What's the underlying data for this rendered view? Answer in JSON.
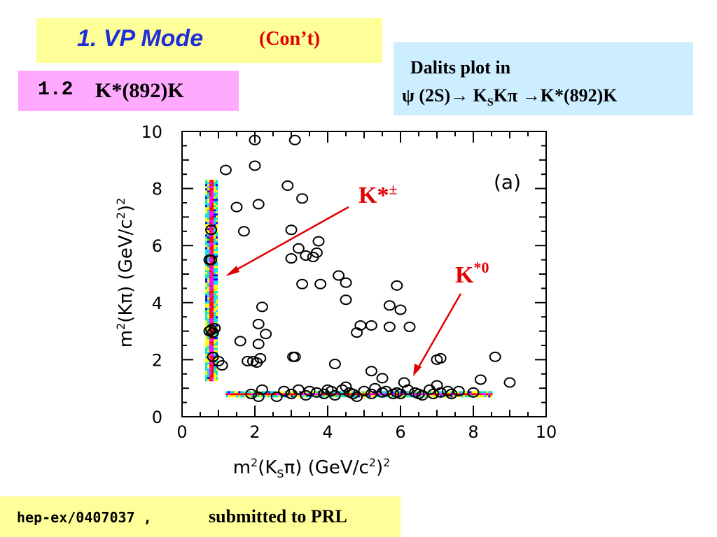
{
  "title": {
    "main": "1. VP Mode",
    "sub": "(Con’t)"
  },
  "section": {
    "number": "1.2",
    "text": "K*(892)K"
  },
  "info": {
    "line1": "Dalits plot in",
    "line2": "ψ (2S)→ K",
    "line2_sub": "S",
    "line2_rest": "Kπ →K*(892)K"
  },
  "footer": {
    "id": "hep-ex/0407037",
    "sep": " ,",
    "text": "submitted to PRL"
  },
  "annotations": {
    "kstar_pm": {
      "text": "K*",
      "sup": "±"
    },
    "kstar_0": {
      "text": "K",
      "sup": "*0"
    },
    "panel": "(a)"
  },
  "colors": {
    "title_blue": "#1f2fd6",
    "title_red": "#e00000",
    "arrow": "#e00000",
    "band_colors": [
      "#ffff00",
      "#00e0e0",
      "#ff00ff",
      "#ff0000",
      "#00ff66",
      "#0000ff"
    ]
  },
  "chart_data": {
    "type": "scatter",
    "title": "",
    "xlabel": "m²(Kₛπ) (GeV/c²)²",
    "xlabel_parts": [
      "m",
      "2",
      "(K",
      "S",
      "π) (GeV/c",
      "2",
      ")",
      "2"
    ],
    "ylabel_parts": [
      "m",
      "2",
      "(Kπ) (GeV/c",
      "2",
      ")",
      "2"
    ],
    "xlim": [
      0,
      10
    ],
    "ylim": [
      0,
      10
    ],
    "xticks": [
      "0",
      "2",
      "4",
      "6",
      "8",
      "10"
    ],
    "yticks": [
      "0",
      "2",
      "4",
      "6",
      "8",
      "10"
    ],
    "grid": false,
    "series": [
      {
        "marker": "open-circle",
        "points": [
          [
            2.0,
            9.7
          ],
          [
            3.1,
            9.7
          ],
          [
            1.2,
            8.65
          ],
          [
            2.0,
            8.8
          ],
          [
            2.9,
            8.1
          ],
          [
            3.3,
            7.65
          ],
          [
            1.5,
            7.35
          ],
          [
            2.1,
            7.45
          ],
          [
            0.8,
            6.55
          ],
          [
            1.7,
            6.5
          ],
          [
            3.0,
            6.55
          ],
          [
            3.0,
            5.55
          ],
          [
            3.2,
            5.9
          ],
          [
            3.4,
            5.65
          ],
          [
            3.6,
            5.6
          ],
          [
            3.7,
            5.75
          ],
          [
            3.75,
            6.15
          ],
          [
            0.75,
            5.5
          ],
          [
            0.8,
            5.5
          ],
          [
            3.3,
            4.65
          ],
          [
            3.8,
            4.65
          ],
          [
            4.3,
            4.95
          ],
          [
            4.5,
            4.7
          ],
          [
            5.9,
            4.6
          ],
          [
            4.5,
            4.1
          ],
          [
            5.7,
            3.9
          ],
          [
            6.0,
            3.75
          ],
          [
            2.2,
            3.85
          ],
          [
            2.1,
            3.25
          ],
          [
            2.3,
            2.9
          ],
          [
            2.1,
            2.55
          ],
          [
            1.6,
            2.65
          ],
          [
            3.1,
            2.1
          ],
          [
            3.05,
            2.1
          ],
          [
            4.2,
            1.85
          ],
          [
            4.9,
            3.2
          ],
          [
            5.2,
            3.2
          ],
          [
            5.7,
            3.15
          ],
          [
            6.25,
            3.15
          ],
          [
            4.8,
            2.95
          ],
          [
            0.75,
            3.0
          ],
          [
            0.8,
            3.05
          ],
          [
            0.85,
            2.95
          ],
          [
            0.9,
            3.1
          ],
          [
            0.85,
            2.1
          ],
          [
            1.0,
            1.95
          ],
          [
            1.1,
            1.8
          ],
          [
            1.8,
            1.95
          ],
          [
            1.95,
            1.95
          ],
          [
            2.05,
            1.9
          ],
          [
            2.15,
            2.05
          ],
          [
            5.2,
            1.6
          ],
          [
            5.5,
            1.35
          ],
          [
            7.0,
            2.0
          ],
          [
            7.1,
            2.05
          ],
          [
            8.6,
            2.1
          ],
          [
            9.0,
            1.2
          ],
          [
            8.2,
            1.3
          ],
          [
            6.1,
            1.2
          ],
          [
            7.4,
            0.8
          ],
          [
            7.0,
            1.1
          ],
          [
            1.9,
            0.8
          ],
          [
            2.1,
            0.7
          ],
          [
            2.2,
            0.95
          ],
          [
            2.6,
            0.7
          ],
          [
            2.8,
            0.9
          ],
          [
            3.0,
            0.8
          ],
          [
            3.2,
            0.95
          ],
          [
            3.4,
            0.75
          ],
          [
            3.5,
            0.9
          ],
          [
            3.7,
            0.85
          ],
          [
            3.9,
            0.8
          ],
          [
            4.1,
            0.9
          ],
          [
            4.2,
            0.75
          ],
          [
            4.4,
            0.95
          ],
          [
            4.5,
            1.05
          ],
          [
            4.6,
            0.85
          ],
          [
            4.8,
            0.7
          ],
          [
            5.0,
            0.9
          ],
          [
            5.2,
            0.8
          ],
          [
            5.3,
            1.0
          ],
          [
            5.5,
            0.85
          ],
          [
            5.6,
            0.9
          ],
          [
            5.8,
            0.8
          ],
          [
            5.9,
            0.85
          ],
          [
            6.0,
            0.8
          ],
          [
            6.2,
            0.95
          ],
          [
            6.4,
            0.85
          ],
          [
            6.5,
            0.8
          ],
          [
            6.6,
            0.75
          ],
          [
            6.8,
            0.95
          ],
          [
            6.9,
            0.8
          ],
          [
            7.1,
            0.85
          ],
          [
            7.3,
            0.9
          ],
          [
            7.6,
            0.9
          ],
          [
            8.0,
            0.85
          ],
          [
            4.0,
            0.95
          ],
          [
            4.7,
            0.8
          ]
        ]
      }
    ],
    "bands": [
      {
        "orientation": "vertical",
        "x_center": 0.79,
        "y_range": [
          1.3,
          8.3
        ]
      },
      {
        "orientation": "horizontal",
        "y_center": 0.8,
        "x_range": [
          1.2,
          8.5
        ]
      }
    ]
  }
}
